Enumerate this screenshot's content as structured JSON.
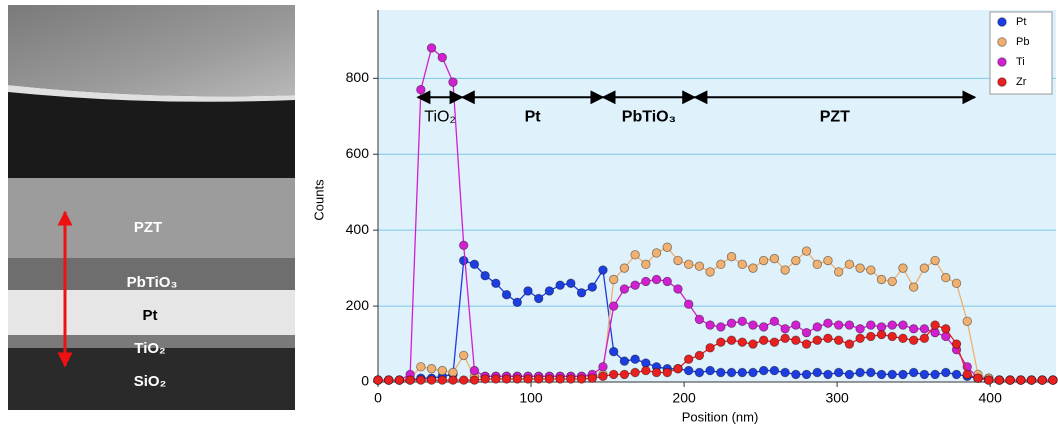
{
  "micrograph": {
    "labels": [
      "PZT",
      "PbTiO₃",
      "Pt",
      "TiO₂",
      "SiO₂"
    ]
  },
  "chart_data": {
    "type": "line",
    "xlabel": "Position (nm)",
    "ylabel": "Counts",
    "xlim": [
      0,
      443
    ],
    "ylim": [
      0,
      980
    ],
    "xticks": [
      0,
      100,
      200,
      300,
      400
    ],
    "yticks": [
      0,
      200,
      400,
      600,
      800
    ],
    "grid": true,
    "legend": "upper right",
    "x": [
      0,
      7,
      14,
      21,
      28,
      35,
      42,
      49,
      56,
      63,
      70,
      77,
      84,
      91,
      98,
      105,
      112,
      119,
      126,
      133,
      140,
      147,
      154,
      161,
      168,
      175,
      182,
      189,
      196,
      203,
      210,
      217,
      224,
      231,
      238,
      245,
      252,
      259,
      266,
      273,
      280,
      287,
      294,
      301,
      308,
      315,
      322,
      329,
      336,
      343,
      350,
      357,
      364,
      371,
      378,
      385,
      392,
      399,
      406,
      413,
      420,
      427,
      434,
      441
    ],
    "series": [
      {
        "name": "Pt",
        "color": "#1c3de0",
        "values": [
          5,
          5,
          5,
          5,
          10,
          10,
          15,
          20,
          320,
          310,
          280,
          260,
          230,
          210,
          240,
          220,
          240,
          255,
          260,
          235,
          250,
          295,
          80,
          55,
          60,
          50,
          40,
          35,
          35,
          30,
          25,
          30,
          25,
          25,
          25,
          25,
          30,
          30,
          25,
          20,
          20,
          25,
          20,
          25,
          20,
          25,
          25,
          20,
          20,
          20,
          25,
          20,
          20,
          25,
          20,
          15,
          10,
          10,
          5,
          5,
          5,
          5,
          5,
          5
        ]
      },
      {
        "name": "Pb",
        "color": "#f0b070",
        "values": [
          5,
          5,
          5,
          10,
          40,
          35,
          30,
          25,
          70,
          15,
          15,
          15,
          15,
          15,
          15,
          15,
          15,
          15,
          15,
          15,
          15,
          20,
          270,
          300,
          335,
          310,
          340,
          355,
          320,
          310,
          305,
          290,
          310,
          330,
          310,
          300,
          320,
          325,
          295,
          320,
          345,
          310,
          320,
          290,
          310,
          300,
          295,
          270,
          265,
          300,
          250,
          300,
          320,
          275,
          260,
          160,
          20,
          10,
          5,
          5,
          5,
          5,
          5,
          5
        ]
      },
      {
        "name": "Ti",
        "color": "#d020d0",
        "values": [
          5,
          5,
          5,
          20,
          770,
          880,
          855,
          790,
          360,
          30,
          15,
          15,
          15,
          15,
          15,
          15,
          15,
          15,
          15,
          15,
          20,
          40,
          200,
          245,
          255,
          265,
          270,
          265,
          245,
          205,
          165,
          150,
          145,
          155,
          160,
          150,
          145,
          160,
          140,
          150,
          130,
          145,
          155,
          150,
          150,
          140,
          150,
          145,
          150,
          150,
          140,
          140,
          130,
          120,
          85,
          40,
          10,
          5,
          5,
          5,
          5,
          5,
          5,
          5
        ]
      },
      {
        "name": "Zr",
        "color": "#e82020",
        "values": [
          5,
          5,
          5,
          5,
          5,
          5,
          5,
          5,
          5,
          5,
          8,
          8,
          8,
          8,
          8,
          8,
          8,
          8,
          8,
          8,
          10,
          15,
          20,
          20,
          25,
          30,
          25,
          25,
          35,
          60,
          70,
          90,
          105,
          110,
          105,
          100,
          110,
          105,
          115,
          110,
          100,
          110,
          115,
          110,
          100,
          115,
          120,
          125,
          120,
          115,
          110,
          115,
          150,
          140,
          100,
          20,
          10,
          5,
          5,
          5,
          5,
          5,
          5,
          5
        ]
      }
    ],
    "annotations": [
      {
        "text": "TiO₂",
        "from": 26,
        "to": 55,
        "y": 750
      },
      {
        "text": "Pt",
        "from": 55,
        "to": 147,
        "y": 750
      },
      {
        "text": "PbTiO₃",
        "from": 147,
        "to": 207,
        "y": 750
      },
      {
        "text": "PZT",
        "from": 207,
        "to": 390,
        "y": 750
      }
    ]
  }
}
